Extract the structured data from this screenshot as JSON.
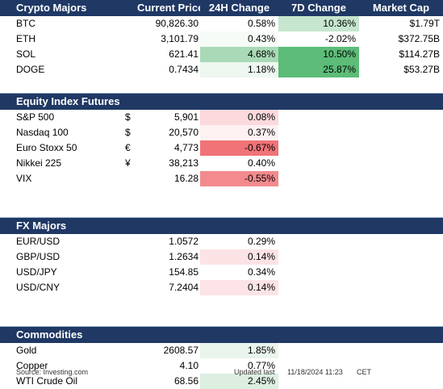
{
  "crypto": {
    "title": "Crypto Majors",
    "col_price": "Current Price",
    "col_24h": "24H Change",
    "col_7d": "7D Change",
    "col_mcap": "Market Cap",
    "rows": [
      {
        "name": "BTC",
        "price": "90,826.30",
        "chg24": "0.58%",
        "chg7": "10.36%",
        "mcap": "$1.79T",
        "bg24": "#ffffff",
        "bg7": "#c6e6cf"
      },
      {
        "name": "ETH",
        "price": "3,101.79",
        "chg24": "0.43%",
        "chg7": "-2.02%",
        "mcap": "$372.75B",
        "bg24": "#f7fbf8",
        "bg7": "#ffffff"
      },
      {
        "name": "SOL",
        "price": "621.41",
        "chg24": "4.68%",
        "chg7": "10.50%",
        "mcap": "$114.27B",
        "bg24": "#a9d9b7",
        "bg7": "#5cbc78"
      },
      {
        "name": "DOGE",
        "price": "0.7434",
        "chg24": "1.18%",
        "chg7": "25.87%",
        "mcap": "$53.27B",
        "bg24": "#eef7f0",
        "bg7": "#5cbc78"
      }
    ]
  },
  "equity": {
    "title": "Equity Index Futures",
    "rows": [
      {
        "name": "S&P 500",
        "cur": "$",
        "price": "5,901",
        "chg24": "0.08%",
        "bg24": "#fbd9dc"
      },
      {
        "name": "Nasdaq 100",
        "cur": "$",
        "price": "20,570",
        "chg24": "0.37%",
        "bg24": "#fdf1f2"
      },
      {
        "name": "Euro Stoxx 50",
        "cur": "€",
        "price": "4,773",
        "chg24": "-0.67%",
        "bg24": "#f07377"
      },
      {
        "name": "Nikkei 225",
        "cur": "¥",
        "price": "38,213",
        "chg24": "0.40%",
        "bg24": "#ffffff"
      },
      {
        "name": "VIX",
        "cur": "",
        "price": "16.28",
        "chg24": "-0.55%",
        "bg24": "#f38a8e"
      }
    ]
  },
  "fx": {
    "title": "FX Majors",
    "rows": [
      {
        "name": "EUR/USD",
        "price": "1.0572",
        "chg24": "0.29%",
        "bg24": "#ffffff"
      },
      {
        "name": "GBP/USD",
        "price": "1.2634",
        "chg24": "0.14%",
        "bg24": "#fce3e5"
      },
      {
        "name": "USD/JPY",
        "price": "154.85",
        "chg24": "0.34%",
        "bg24": "#ffffff"
      },
      {
        "name": "USD/CNY",
        "price": "7.2404",
        "chg24": "0.14%",
        "bg24": "#fce3e5"
      }
    ]
  },
  "commodities": {
    "title": "Commodities",
    "rows": [
      {
        "name": "Gold",
        "price": "2608.57",
        "chg24": "1.85%",
        "bg24": "#e9f5ec"
      },
      {
        "name": "Copper",
        "price": "4.10",
        "chg24": "0.77%",
        "bg24": "#ffffff"
      },
      {
        "name": "WTI Crude Oil",
        "price": "68.56",
        "chg24": "2.45%",
        "bg24": "#dcefe1"
      }
    ]
  },
  "footer": {
    "source": "Source: Investing.com",
    "updated_label": "Updated last",
    "datetime": "11/18/2024 11:23",
    "tz": "CET"
  }
}
